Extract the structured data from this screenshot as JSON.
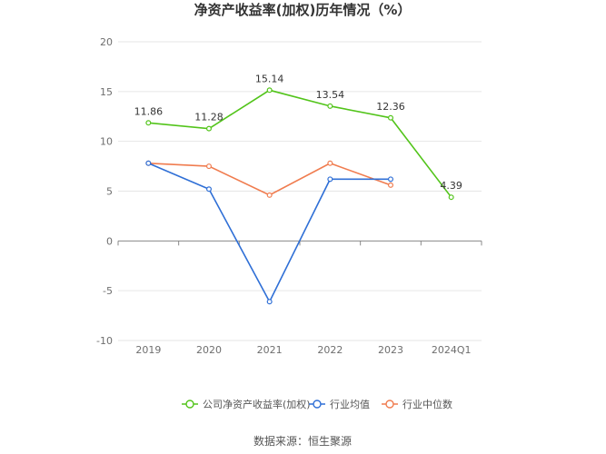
{
  "chart_data": {
    "type": "line",
    "title": "净资产收益率(加权)历年情况（%）",
    "categories": [
      "2019",
      "2020",
      "2021",
      "2022",
      "2023",
      "2024Q1"
    ],
    "ylim": [
      -10,
      20
    ],
    "yticks": [
      -10,
      -5,
      0,
      5,
      10,
      15,
      20
    ],
    "grid": true,
    "legend_position": "bottom",
    "series": [
      {
        "name": "公司净资产收益率(加权)",
        "color": "#52c41a",
        "values": [
          11.86,
          11.28,
          15.14,
          13.54,
          12.36,
          4.39
        ],
        "labels": [
          "11.86",
          "11.28",
          "15.14",
          "13.54",
          "12.36",
          "4.39"
        ]
      },
      {
        "name": "行业均值",
        "color": "#2f6fd6",
        "values": [
          7.8,
          5.2,
          -6.1,
          6.2,
          6.2,
          null
        ]
      },
      {
        "name": "行业中位数",
        "color": "#f07c4f",
        "values": [
          7.8,
          7.5,
          4.6,
          7.8,
          5.6,
          null
        ]
      }
    ],
    "source": "数据来源：恒生聚源"
  }
}
